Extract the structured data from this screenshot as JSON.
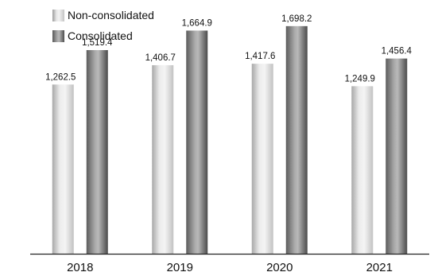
{
  "chart_data": {
    "type": "bar",
    "categories": [
      "2018",
      "2019",
      "2020",
      "2021"
    ],
    "series": [
      {
        "name": "Non-consolidated",
        "values": [
          1262.5,
          1406.7,
          1417.6,
          1249.9
        ],
        "labels": [
          "1,262.5",
          "1,406.7",
          "1,417.6",
          "1,249.9"
        ]
      },
      {
        "name": "Consolidated",
        "values": [
          1519.4,
          1664.9,
          1698.2,
          1456.4
        ],
        "labels": [
          "1,519.4",
          "1,664.9",
          "1,698.2",
          "1,456.4"
        ]
      }
    ],
    "ylim": [
      0,
      2000
    ],
    "grid": false,
    "legend_position": "top-left"
  },
  "legend": {
    "items": [
      "Non-consolidated",
      "Consolidated"
    ]
  },
  "colors": {
    "non_consolidated": "#d9d9d9",
    "consolidated": "#7a7a7a",
    "axis": "#222222"
  }
}
